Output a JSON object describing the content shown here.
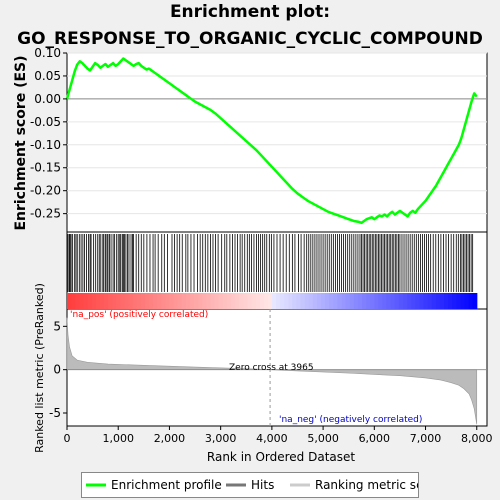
{
  "title_line1": "Enrichment plot:",
  "title_line2": "GO_RESPONSE_TO_ORGANIC_CYCLIC_COMPOUND",
  "colors": {
    "profile": "#00ff00",
    "hits": "#000000",
    "metric": "#bbbbbb",
    "pos_label": "#ff0000",
    "neg_label": "#0000cc"
  },
  "chart_data": {
    "type": "line",
    "x_label": "Rank in Ordered Dataset",
    "x_ticks": [
      "0",
      "1,000",
      "2,000",
      "3,000",
      "4,000",
      "5,000",
      "6,000",
      "7,000",
      "8,000"
    ],
    "xlim": [
      0,
      8200
    ],
    "es_panel": {
      "ylabel": "Enrichment score (ES)",
      "ylim": [
        -0.29,
        0.1
      ],
      "y_ticks": [
        "0.10",
        "0.05",
        "0.00",
        "-0.05",
        "-0.10",
        "-0.15",
        "-0.20",
        "-0.25"
      ],
      "series": [
        {
          "x": [
            0,
            50,
            100,
            150,
            200,
            250,
            300,
            350,
            400,
            450,
            500,
            550,
            600,
            650,
            700,
            750,
            800,
            850,
            900,
            950,
            1000,
            1050,
            1100,
            1150,
            1200,
            1250,
            1300,
            1350,
            1400,
            1450,
            1500,
            1550,
            1600,
            1650,
            1700,
            1750,
            1800,
            1900,
            2000,
            2100,
            2200,
            2300,
            2400,
            2500,
            2600,
            2700,
            2800,
            2900,
            3000,
            3100,
            3200,
            3300,
            3400,
            3500,
            3600,
            3700,
            3800,
            3900,
            4000,
            4100,
            4200,
            4300,
            4400,
            4500,
            4600,
            4700,
            4800,
            4900,
            5000,
            5100,
            5200,
            5300,
            5400,
            5500,
            5600,
            5700,
            5750,
            5800,
            5850,
            5900,
            5950,
            6000,
            6050,
            6100,
            6150,
            6200,
            6250,
            6300,
            6350,
            6400,
            6450,
            6500,
            6550,
            6600,
            6650,
            6700,
            6750,
            6800,
            6850,
            6900,
            6950,
            7000,
            7050,
            7100,
            7150,
            7200,
            7250,
            7300,
            7350,
            7400,
            7450,
            7500,
            7550,
            7600,
            7650,
            7700,
            7750,
            7800,
            7850,
            7900,
            7950,
            8000
          ],
          "y": [
            0.0,
            0.02,
            0.04,
            0.06,
            0.075,
            0.082,
            0.078,
            0.072,
            0.066,
            0.062,
            0.07,
            0.078,
            0.074,
            0.068,
            0.072,
            0.076,
            0.07,
            0.074,
            0.078,
            0.072,
            0.076,
            0.082,
            0.088,
            0.084,
            0.08,
            0.076,
            0.072,
            0.076,
            0.078,
            0.072,
            0.068,
            0.064,
            0.066,
            0.062,
            0.058,
            0.054,
            0.05,
            0.042,
            0.034,
            0.026,
            0.018,
            0.01,
            0.002,
            -0.006,
            -0.012,
            -0.018,
            -0.024,
            -0.032,
            -0.042,
            -0.052,
            -0.062,
            -0.072,
            -0.082,
            -0.092,
            -0.102,
            -0.112,
            -0.124,
            -0.136,
            -0.148,
            -0.16,
            -0.172,
            -0.184,
            -0.196,
            -0.206,
            -0.214,
            -0.222,
            -0.228,
            -0.234,
            -0.24,
            -0.246,
            -0.25,
            -0.254,
            -0.258,
            -0.262,
            -0.266,
            -0.268,
            -0.27,
            -0.266,
            -0.262,
            -0.26,
            -0.258,
            -0.262,
            -0.258,
            -0.254,
            -0.256,
            -0.252,
            -0.256,
            -0.25,
            -0.246,
            -0.252,
            -0.248,
            -0.244,
            -0.248,
            -0.252,
            -0.256,
            -0.248,
            -0.244,
            -0.248,
            -0.24,
            -0.234,
            -0.228,
            -0.222,
            -0.214,
            -0.206,
            -0.198,
            -0.19,
            -0.18,
            -0.17,
            -0.16,
            -0.15,
            -0.14,
            -0.13,
            -0.12,
            -0.11,
            -0.1,
            -0.085,
            -0.065,
            -0.045,
            -0.025,
            -0.005,
            0.012,
            0.005
          ]
        }
      ]
    },
    "hits_panel": {
      "legend_entry": "Hits",
      "hit_ranks": [
        20,
        45,
        60,
        80,
        110,
        150,
        175,
        200,
        240,
        275,
        310,
        340,
        380,
        420,
        450,
        470,
        520,
        560,
        600,
        630,
        660,
        700,
        720,
        750,
        780,
        800,
        830,
        860,
        900,
        930,
        970,
        1000,
        1030,
        1050,
        1080,
        1100,
        1120,
        1150,
        1180,
        1210,
        1250,
        1280,
        1300,
        1350,
        1400,
        1450,
        1500,
        1560,
        1620,
        1680,
        1720,
        1780,
        1850,
        1900,
        1960,
        2050,
        2100,
        2150,
        2200,
        2250,
        2320,
        2360,
        2420,
        2480,
        2550,
        2600,
        2650,
        2700,
        2750,
        2800,
        2850,
        2900,
        2950,
        3020,
        3080,
        3120,
        3180,
        3230,
        3280,
        3330,
        3380,
        3420,
        3470,
        3520,
        3560,
        3600,
        3650,
        3700,
        3740,
        3780,
        3820,
        3860,
        3900,
        3950,
        3990,
        4040,
        4100,
        4160,
        4220,
        4280,
        4340,
        4400,
        4450,
        4520,
        4570,
        4630,
        4680,
        4720,
        4760,
        4800,
        4840,
        4880,
        4920,
        4960,
        5000,
        5040,
        5080,
        5120,
        5160,
        5200,
        5240,
        5280,
        5320,
        5360,
        5400,
        5440,
        5480,
        5520,
        5560,
        5600,
        5640,
        5680,
        5720,
        5750,
        5780,
        5810,
        5840,
        5870,
        5900,
        5930,
        5960,
        5990,
        6020,
        6050,
        6080,
        6110,
        6140,
        6170,
        6200,
        6230,
        6260,
        6290,
        6320,
        6350,
        6380,
        6410,
        6440,
        6470,
        6500,
        6540,
        6580,
        6620,
        6660,
        6700,
        6740,
        6780,
        6820,
        6860,
        6900,
        6940,
        6980,
        7020,
        7060,
        7100,
        7150,
        7200,
        7250,
        7300,
        7350,
        7400,
        7450,
        7500,
        7550,
        7600,
        7640,
        7680,
        7710,
        7740,
        7770,
        7800,
        7830,
        7860,
        7890,
        7920
      ]
    },
    "metric_panel": {
      "ylabel": "Ranked list metric (PreRanked)",
      "ylim": [
        -6.5,
        7.0
      ],
      "y_ticks": [
        "5",
        "0",
        "-5"
      ],
      "pos_label": "'na_pos' (positively correlated)",
      "neg_label": "'na_neg' (negatively correlated)",
      "zero_cross_label": "Zero cross at 3965",
      "zero_cross_rank": 3965,
      "x": [
        0,
        20,
        50,
        100,
        200,
        400,
        800,
        1500,
        2500,
        3500,
        3965,
        4500,
        5500,
        6500,
        7000,
        7300,
        7500,
        7650,
        7750,
        7850,
        7900,
        7950,
        8000
      ],
      "y": [
        6.0,
        4.0,
        2.6,
        1.6,
        1.1,
        0.85,
        0.65,
        0.5,
        0.3,
        0.12,
        0.0,
        -0.15,
        -0.4,
        -0.7,
        -0.95,
        -1.2,
        -1.5,
        -1.8,
        -2.2,
        -2.8,
        -3.5,
        -4.5,
        -6.3
      ]
    },
    "legend": [
      "Enrichment profile",
      "Hits",
      "Ranking metric scores"
    ]
  }
}
